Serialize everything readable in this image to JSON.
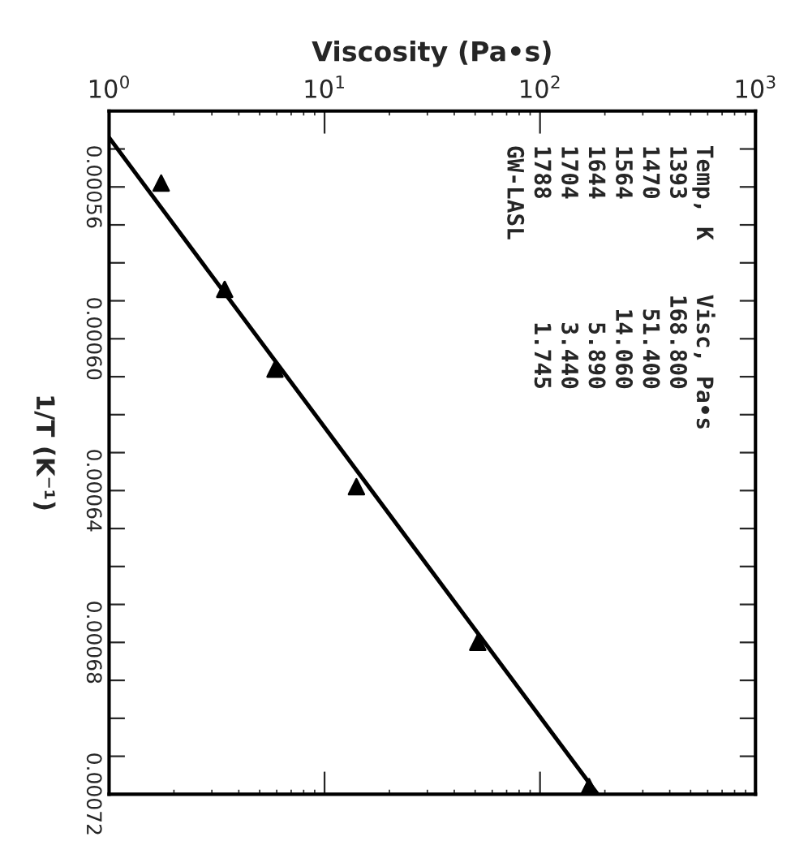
{
  "chart_data": {
    "type": "scatter",
    "xlabel": "Viscosity (Pa•s)",
    "ylabel": "1/T (K⁻¹)",
    "log": "x",
    "xlim": [
      1,
      1000
    ],
    "xticks": [
      {
        "value": 1,
        "label": "10$^{0}$"
      },
      {
        "value": 10,
        "label": "10$^{1}$"
      },
      {
        "value": 100,
        "label": "10$^{2}$"
      },
      {
        "value": 1000,
        "label": "10$^{3}$"
      }
    ],
    "ylim": [
      0.00072,
      0.00054
    ],
    "yticks": [
      {
        "value": 0.00055,
        "label": null
      },
      {
        "value": 0.00056,
        "label": "0.00056"
      },
      {
        "value": 0.00057,
        "label": null
      },
      {
        "value": 0.00058,
        "label": null
      },
      {
        "value": 0.00059,
        "label": null
      },
      {
        "value": 0.0006,
        "label": "0.00060"
      },
      {
        "value": 0.00061,
        "label": null
      },
      {
        "value": 0.00062,
        "label": null
      },
      {
        "value": 0.00063,
        "label": null
      },
      {
        "value": 0.00064,
        "label": "0.00064"
      },
      {
        "value": 0.00065,
        "label": null
      },
      {
        "value": 0.00066,
        "label": null
      },
      {
        "value": 0.00067,
        "label": null
      },
      {
        "value": 0.00068,
        "label": "0.00068"
      },
      {
        "value": 0.00069,
        "label": null
      },
      {
        "value": 0.0007,
        "label": null
      },
      {
        "value": 0.00071,
        "label": null
      },
      {
        "value": 0.00072,
        "label": "0.00072"
      }
    ],
    "grid": false,
    "marker": "triangle",
    "series": [
      {
        "color": "#000000",
        "x": [
          168.8,
          51.4,
          14.06,
          5.89,
          3.44,
          1.745
        ],
        "values": [
          0.000718,
          0.00068,
          0.000639,
          0.000608,
          0.000587,
          0.000559
        ]
      },
      {
        "type": "line",
        "marker": "none",
        "color": "#000000",
        "x": [
          1,
          185
        ],
        "values": [
          0.000547,
          0.00072
        ]
      }
    ],
    "annotations": [
      "Temp, K    Visc, Pa•s",
      "1393       168.800",
      "1470        51.400",
      "1564        14.060",
      "1644         5.890",
      "1704         3.440",
      "1788         1.745",
      "GW-LASL"
    ]
  }
}
